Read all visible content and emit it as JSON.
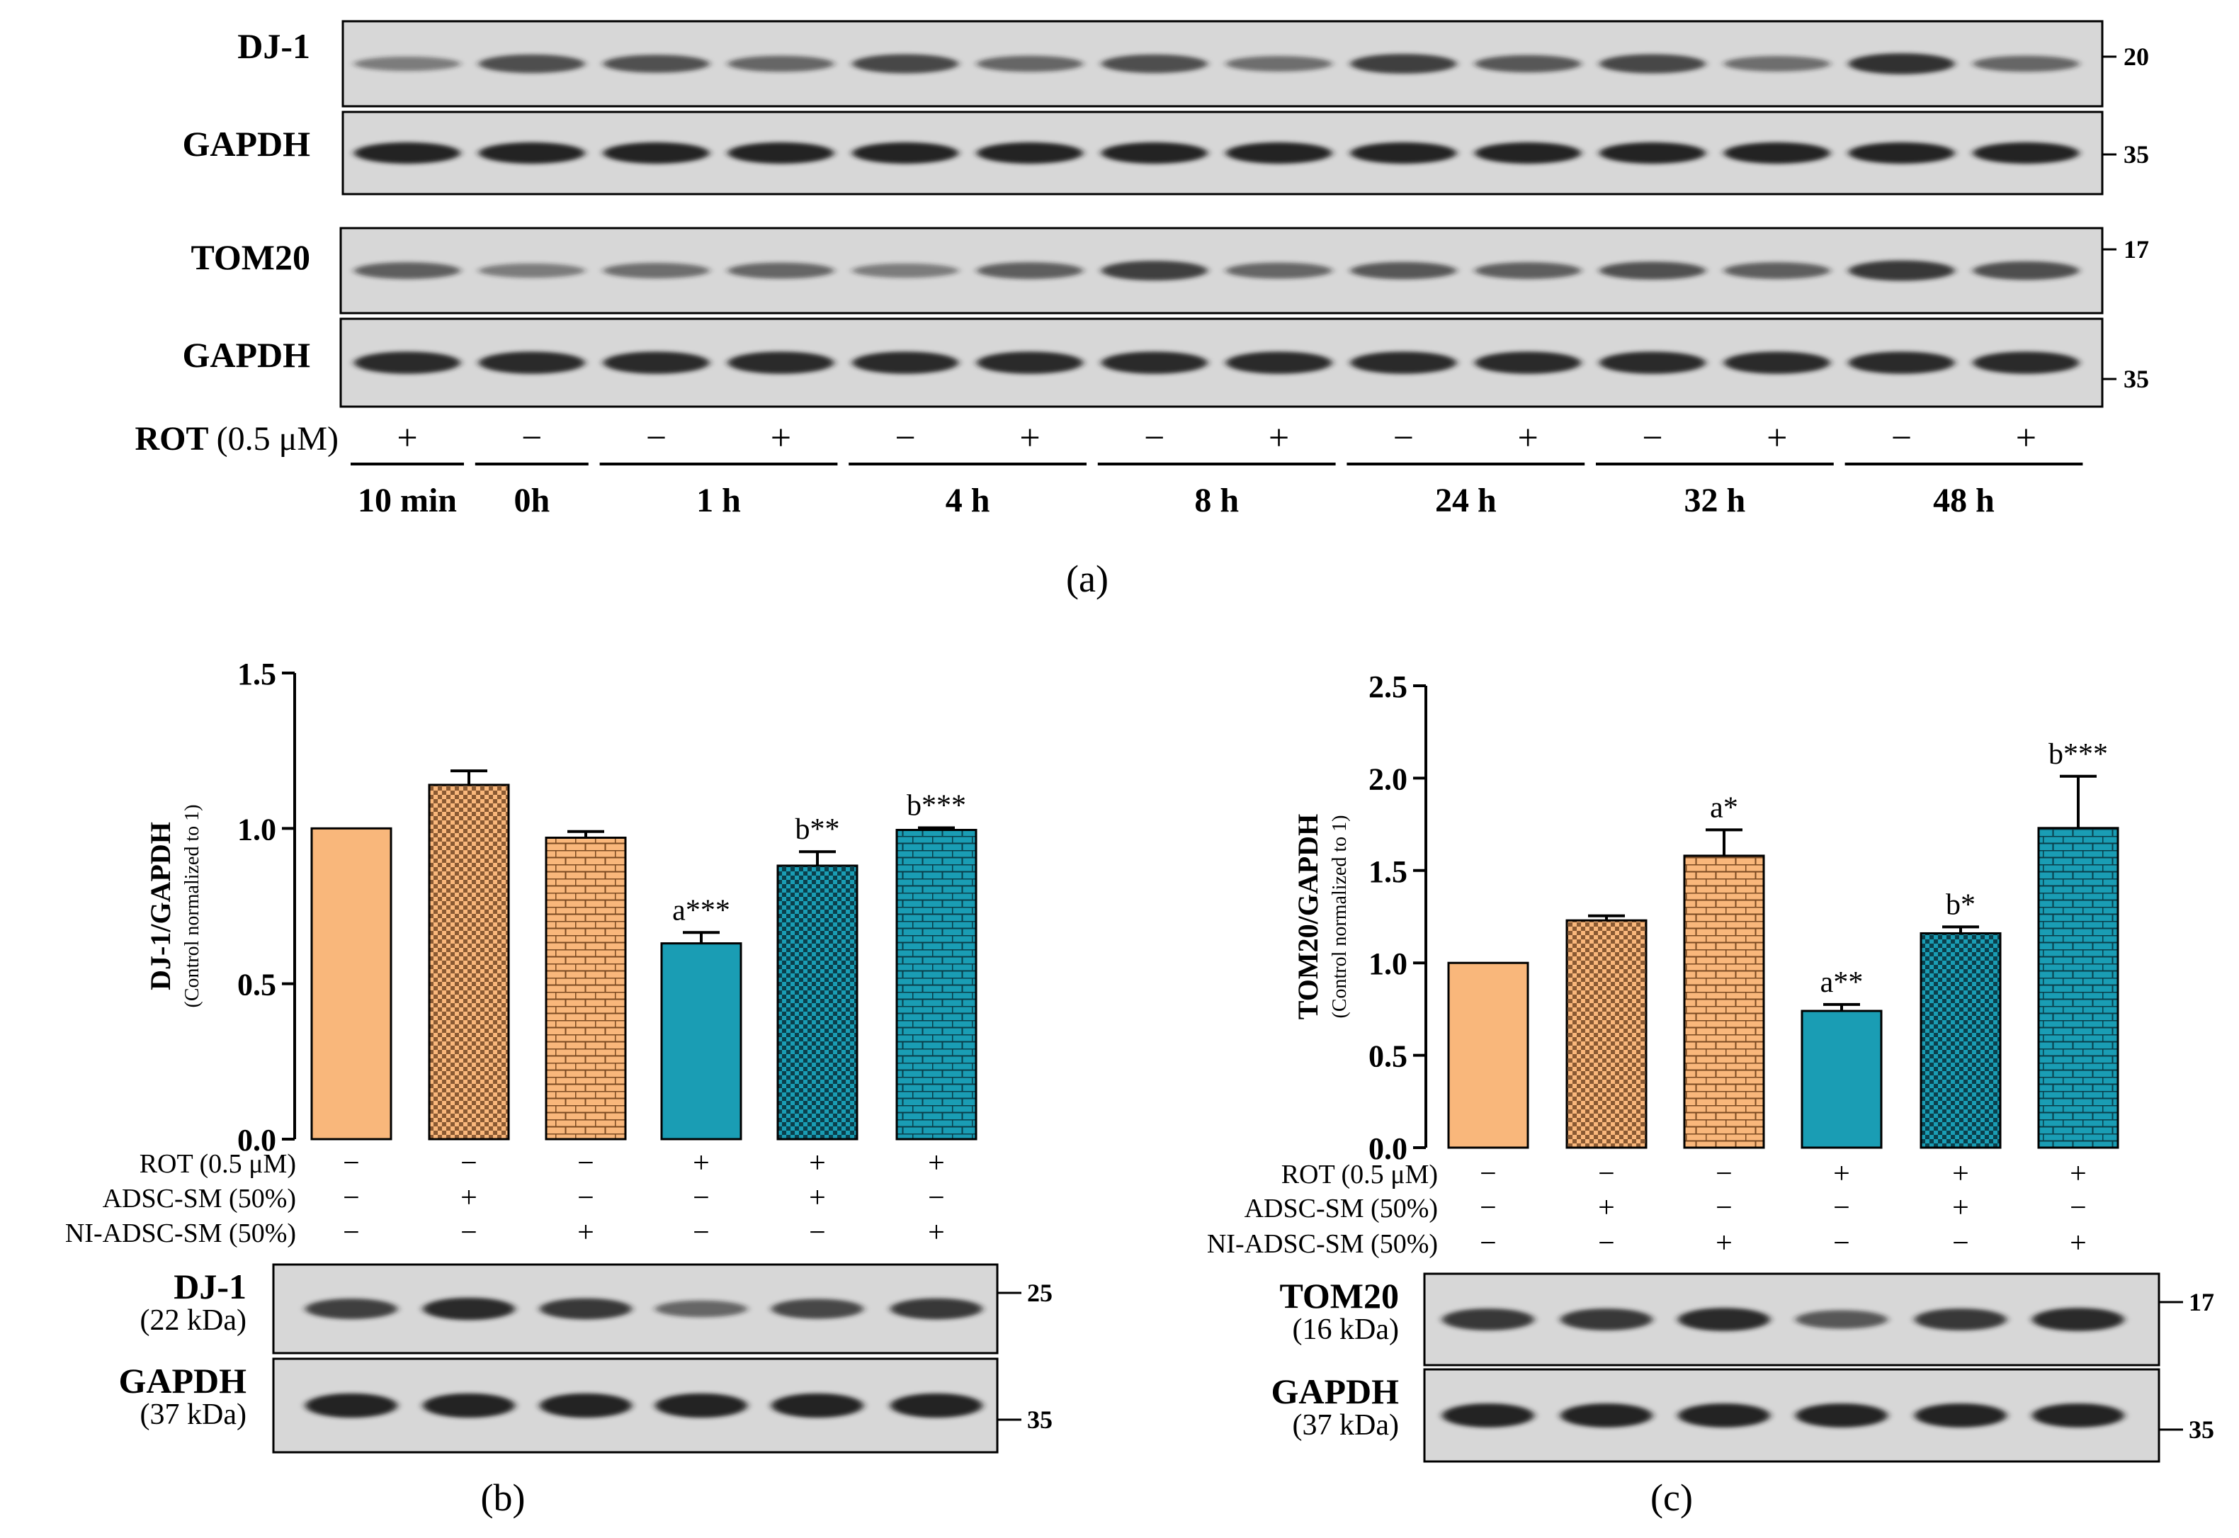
{
  "colors": {
    "peach": "#F9B77B",
    "peach_dark": "#E08C45",
    "teal": "#1A9DB4",
    "teal_dark": "#0F6F84",
    "blot_bg": "#D7D7D7",
    "band": "#1E1E1E"
  },
  "panel_a": {
    "label": "(a)",
    "blots": [
      {
        "name": "DJ-1",
        "marker": "20",
        "intensities": [
          0.35,
          0.7,
          0.65,
          0.5,
          0.75,
          0.5,
          0.7,
          0.45,
          0.8,
          0.6,
          0.75,
          0.45,
          0.9,
          0.5
        ]
      },
      {
        "name": "GAPDH",
        "marker": "35",
        "intensities": [
          1,
          1,
          1,
          1,
          1,
          1,
          1,
          1,
          1,
          1,
          1,
          1,
          1,
          1
        ]
      },
      {
        "name": "TOM20",
        "marker": "17",
        "intensities": [
          0.55,
          0.35,
          0.45,
          0.5,
          0.35,
          0.55,
          0.8,
          0.5,
          0.6,
          0.55,
          0.65,
          0.55,
          0.85,
          0.7
        ]
      },
      {
        "name": "GAPDH",
        "marker": "35",
        "intensities": [
          0.95,
          0.95,
          0.95,
          0.95,
          0.95,
          0.95,
          0.95,
          0.95,
          0.95,
          0.95,
          0.95,
          0.95,
          0.95,
          0.95
        ]
      }
    ],
    "rot_label_bold": "ROT",
    "rot_label_conc": "(0.5 μM)",
    "rot_signs": [
      "+",
      "−",
      "−",
      "+",
      "−",
      "+",
      "−",
      "+",
      "−",
      "+",
      "−",
      "+",
      "−",
      "+"
    ],
    "time_groups": [
      {
        "label": "10 min",
        "lanes": [
          0
        ]
      },
      {
        "label": "0h",
        "lanes": [
          1
        ]
      },
      {
        "label": "1 h",
        "lanes": [
          2,
          3
        ]
      },
      {
        "label": "4 h",
        "lanes": [
          4,
          5
        ]
      },
      {
        "label": "8 h",
        "lanes": [
          6,
          7
        ]
      },
      {
        "label": "24 h",
        "lanes": [
          8,
          9
        ]
      },
      {
        "label": "32 h",
        "lanes": [
          10,
          11
        ]
      },
      {
        "label": "48 h",
        "lanes": [
          12,
          13
        ]
      }
    ]
  },
  "panel_b": {
    "label": "(b)",
    "treatment_labels": {
      "rot": "ROT (0.5 μM)",
      "adsc": "ADSC-SM (50%)",
      "ni": "NI-ADSC-SM (50%)"
    },
    "signs": {
      "rot": [
        "−",
        "−",
        "−",
        "+",
        "+",
        "+"
      ],
      "adsc": [
        "−",
        "+",
        "−",
        "−",
        "+",
        "−"
      ],
      "ni": [
        "−",
        "−",
        "+",
        "−",
        "−",
        "+"
      ]
    },
    "blots": [
      {
        "name": "DJ-1",
        "kda": "(22 kDa)",
        "marker": "25",
        "intensities": [
          0.8,
          0.95,
          0.85,
          0.5,
          0.75,
          0.85
        ]
      },
      {
        "name": "GAPDH",
        "kda": "(37 kDa)",
        "marker": "35",
        "intensities": [
          1,
          1,
          1,
          1,
          1,
          1
        ]
      }
    ]
  },
  "panel_c": {
    "label": "(c)",
    "treatment_labels": {
      "rot": "ROT (0.5 μM)",
      "adsc": "ADSC-SM (50%)",
      "ni": "NI-ADSC-SM (50%)"
    },
    "signs": {
      "rot": [
        "−",
        "−",
        "−",
        "+",
        "+",
        "+"
      ],
      "adsc": [
        "−",
        "+",
        "−",
        "−",
        "+",
        "−"
      ],
      "ni": [
        "−",
        "−",
        "+",
        "−",
        "−",
        "+"
      ]
    },
    "blots": [
      {
        "name": "TOM20",
        "kda": "(16 kDa)",
        "marker": "17",
        "intensities": [
          0.85,
          0.85,
          0.95,
          0.6,
          0.85,
          0.95
        ]
      },
      {
        "name": "GAPDH",
        "kda": "(37 kDa)",
        "marker": "35",
        "intensities": [
          1,
          1,
          1,
          1,
          1,
          1
        ]
      }
    ]
  },
  "chart_data": [
    {
      "type": "bar",
      "panel": "b",
      "ylabel": "DJ-1/GAPDH",
      "ylabel_sub": "(Control normalized to 1)",
      "ylim": [
        0,
        1.5
      ],
      "yticks": [
        "0.0",
        "0.5",
        "1.0",
        "1.5"
      ],
      "values": [
        1.0,
        1.14,
        0.97,
        0.63,
        0.88,
        0.995
      ],
      "errors": [
        0,
        0.045,
        0.02,
        0.035,
        0.045,
        0.007
      ],
      "annotations": [
        "",
        "",
        "",
        "a***",
        "b**",
        "b***"
      ],
      "patterns": [
        "solid-peach",
        "check-peach",
        "brick-peach",
        "solid-teal",
        "check-teal",
        "brick-teal"
      ]
    },
    {
      "type": "bar",
      "panel": "c",
      "ylabel": "TOM20/GAPDH",
      "ylabel_sub": "(Control normalized to 1)",
      "ylim": [
        0,
        2.5
      ],
      "yticks": [
        "0.0",
        "0.5",
        "1.0",
        "1.5",
        "2.0",
        "2.5"
      ],
      "values": [
        1.0,
        1.23,
        1.58,
        0.74,
        1.16,
        1.73
      ],
      "errors": [
        0,
        0.025,
        0.14,
        0.035,
        0.035,
        0.28
      ],
      "annotations": [
        "",
        "",
        "a*",
        "a**",
        "b*",
        "b***"
      ],
      "patterns": [
        "solid-peach",
        "check-peach",
        "brick-peach",
        "solid-teal",
        "check-teal",
        "brick-teal"
      ]
    }
  ]
}
